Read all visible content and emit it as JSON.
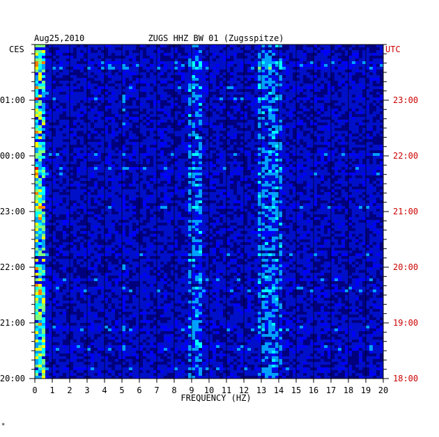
{
  "chart_data": {
    "type": "heatmap",
    "date": "Aug25,2010",
    "title": "ZUGS HHZ BW 01 (Zugsspitze)",
    "left_axis_tz": "CES",
    "right_axis_tz": "UTC",
    "xlabel": "FREQUENCY (HZ)",
    "xlim": [
      0,
      20
    ],
    "x_ticks": [
      "0",
      "1",
      "2",
      "3",
      "4",
      "5",
      "6",
      "7",
      "8",
      "9",
      "10",
      "11",
      "12",
      "13",
      "14",
      "15",
      "16",
      "17",
      "18",
      "19",
      "20"
    ],
    "left_hour_ticks": [
      "01:00",
      "00:00",
      "23:00",
      "22:00",
      "21:00",
      "20:00"
    ],
    "right_hour_ticks": [
      "23:00",
      "22:00",
      "21:00",
      "20:00",
      "19:00",
      "18:00"
    ],
    "time_span_hours": 6,
    "colormap": [
      "#00007f",
      "#0000ff",
      "#00a0ff",
      "#00ffff",
      "#7fff7f",
      "#ffff00",
      "#ff7f00",
      "#ff0000"
    ],
    "energy_bands_hz": [
      {
        "from": 0.1,
        "to": 0.7,
        "level": "high"
      },
      {
        "from": 8.9,
        "to": 9.5,
        "level": "medium"
      },
      {
        "from": 12.8,
        "to": 14.1,
        "level": "medium"
      },
      {
        "from": 5.0,
        "to": 5.3,
        "level": "low"
      }
    ]
  },
  "colors": {
    "background": "#ffffff",
    "axis_text": "#000000",
    "utc_text": "#cc0000",
    "plot_base": "#0010c8"
  },
  "footer_mark": "*"
}
